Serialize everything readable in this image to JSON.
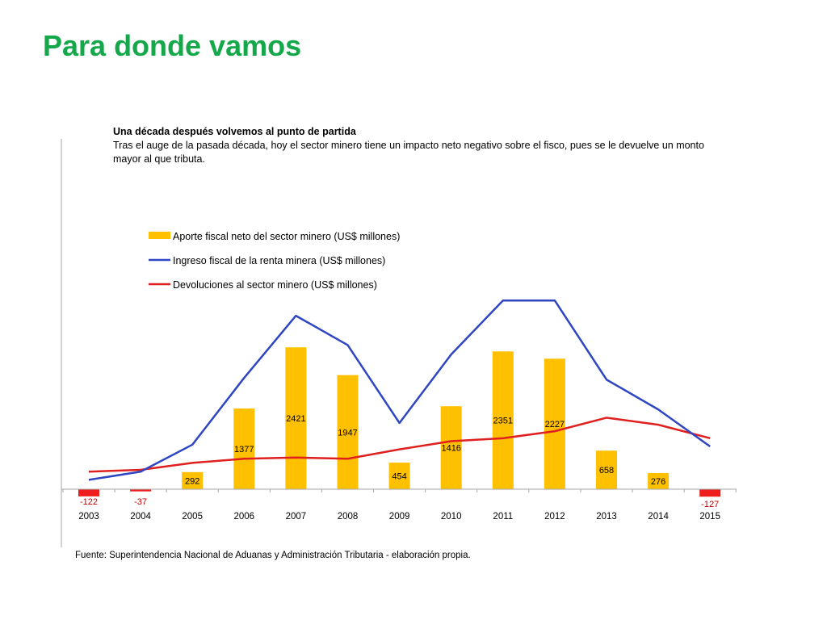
{
  "slide": {
    "title": "Para donde vamos",
    "source": "Fuente: Superintendencia Nacional de Aduanas y Administración Tributaria - elaboración propia."
  },
  "colors": {
    "title": "#14a84b",
    "bars": "#ffc000",
    "negative_bars": "#ee1c1c",
    "line_income": "#2e46c2",
    "line_refunds": "#e01f1f",
    "axis": "#a6a6a6"
  },
  "chart_data": {
    "type": "bar",
    "title": "Una década después volvemos al punto de partida",
    "subtitle": "Tras el auge de la pasada década, hoy el sector minero tiene un impacto neto negativo sobre el fisco,  pues se le devuelve un monto mayor al que tributa.",
    "categories": [
      "2003",
      "2004",
      "2005",
      "2006",
      "2007",
      "2008",
      "2009",
      "2010",
      "2011",
      "2012",
      "2013",
      "2014",
      "2015"
    ],
    "legend_position": "top-left",
    "grid": false,
    "ylim": [
      -200,
      4400
    ],
    "series": [
      {
        "name": "Aporte fiscal neto del sector minero (US$ millones)",
        "type": "bar",
        "values": [
          -122,
          -37,
          292,
          1377,
          2421,
          1947,
          454,
          1416,
          2351,
          2227,
          658,
          276,
          -127
        ],
        "labels": [
          "-122",
          "-37",
          "292",
          "1377",
          "2421",
          "1947",
          "454",
          "1416",
          "2351",
          "2227",
          "658",
          "276",
          "-127"
        ]
      },
      {
        "name": "Ingreso fiscal de la renta minera (US$ millones)",
        "type": "line",
        "values": [
          160,
          300,
          760,
          1900,
          2960,
          2460,
          1130,
          2300,
          3220,
          3220,
          1870,
          1360,
          730
        ]
      },
      {
        "name": "Devoluciones al sector minero (US$ millones)",
        "type": "line",
        "values": [
          300,
          330,
          450,
          520,
          540,
          520,
          680,
          820,
          870,
          990,
          1220,
          1100,
          870
        ]
      }
    ]
  }
}
